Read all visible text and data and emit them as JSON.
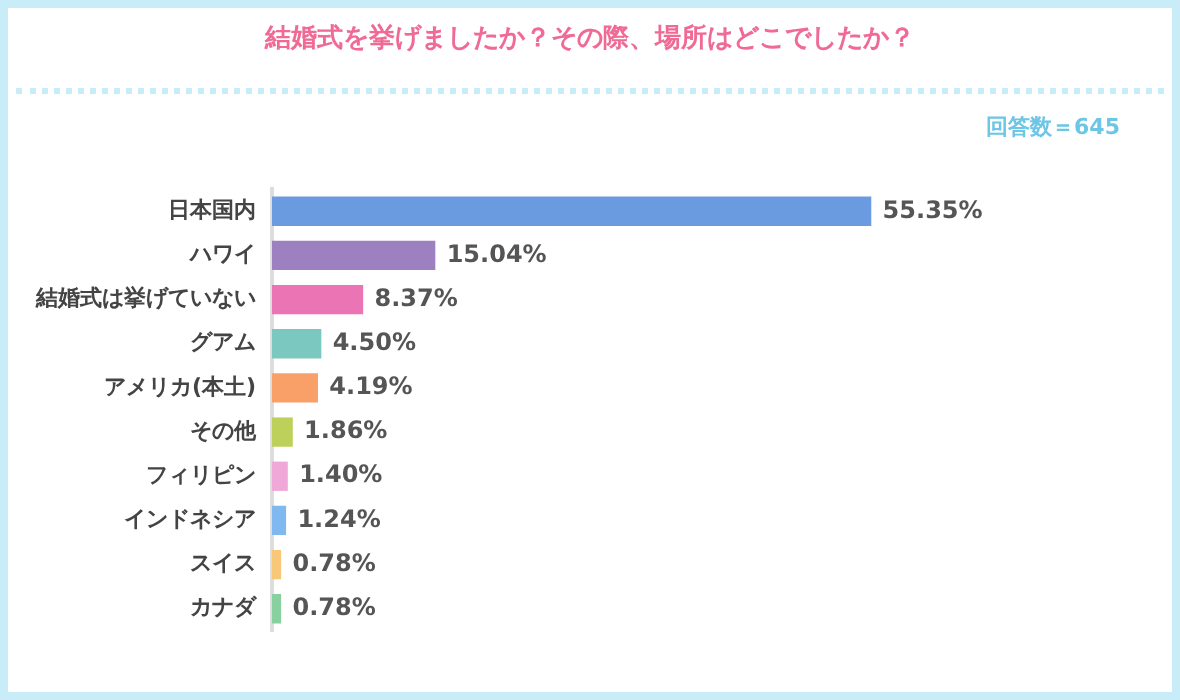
{
  "chart_data": {
    "type": "bar",
    "orientation": "horizontal",
    "title": "結婚式を挙げましたか？その際、場所はどこでしたか？",
    "annotations": [
      "回答数＝645"
    ],
    "categories": [
      "日本国内",
      "ハワイ",
      "結婚式は挙げていない",
      "グアム",
      "アメリカ(本土)",
      "その他",
      "フィリピン",
      "インドネシア",
      "スイス",
      "カナダ"
    ],
    "values": [
      55.35,
      15.04,
      8.37,
      4.5,
      4.19,
      1.86,
      1.4,
      1.24,
      0.78,
      0.78
    ],
    "value_labels": [
      "55.35%",
      "15.04%",
      "8.37%",
      "4.50%",
      "4.19%",
      "1.86%",
      "1.40%",
      "1.24%",
      "0.78%",
      "0.78%"
    ],
    "colors": [
      "#6a9be0",
      "#9d80c0",
      "#ea74b4",
      "#7ac8c0",
      "#f8a068",
      "#bcd05a",
      "#f0a8d8",
      "#80b8f0",
      "#f8c878",
      "#88d0a0"
    ],
    "legend": false,
    "grid": false
  }
}
